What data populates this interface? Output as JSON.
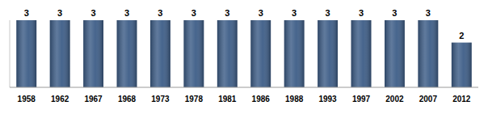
{
  "chart_data": {
    "type": "bar",
    "categories": [
      "1958",
      "1962",
      "1967",
      "1968",
      "1973",
      "1978",
      "1981",
      "1986",
      "1988",
      "1993",
      "1997",
      "2002",
      "2007",
      "2012"
    ],
    "values": [
      3,
      3,
      3,
      3,
      3,
      3,
      3,
      3,
      3,
      3,
      3,
      3,
      3,
      2
    ],
    "color": "#3d5d87",
    "ylim": [
      0,
      3
    ],
    "grid": false,
    "data_labels": true,
    "tick_labels": "x"
  }
}
